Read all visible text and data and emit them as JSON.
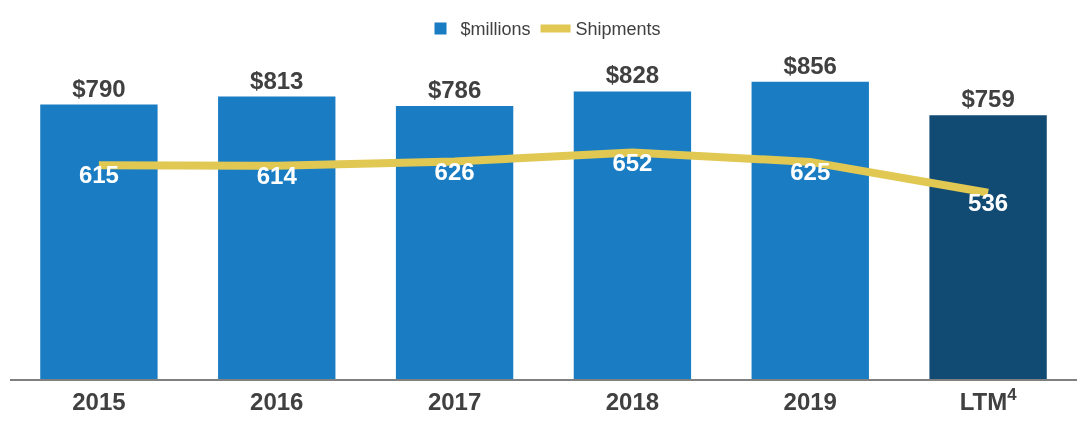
{
  "chart_data": {
    "type": "bar",
    "categories": [
      "2015",
      "2016",
      "2017",
      "2018",
      "2019",
      "LTM$^{4}$"
    ],
    "tick_labels": "x",
    "legend": "top",
    "series": [
      {
        "name": "$millions",
        "colors": [
          "#1a7dc4",
          "#1a7dc4",
          "#1a7dc4",
          "#1a7dc4",
          "#1a7dc4",
          "#114a73"
        ],
        "values": [
          790,
          813,
          786,
          828,
          856,
          759
        ],
        "value_labels": [
          "$790",
          "$813",
          "$786",
          "$828",
          "$856",
          "$759"
        ]
      },
      {
        "name": "Shipments",
        "type": "line",
        "color": "#e0c853",
        "values": [
          615,
          614,
          626,
          652,
          625,
          536
        ],
        "value_labels": [
          "615",
          "614",
          "626",
          "652",
          "625",
          "536"
        ]
      }
    ]
  }
}
